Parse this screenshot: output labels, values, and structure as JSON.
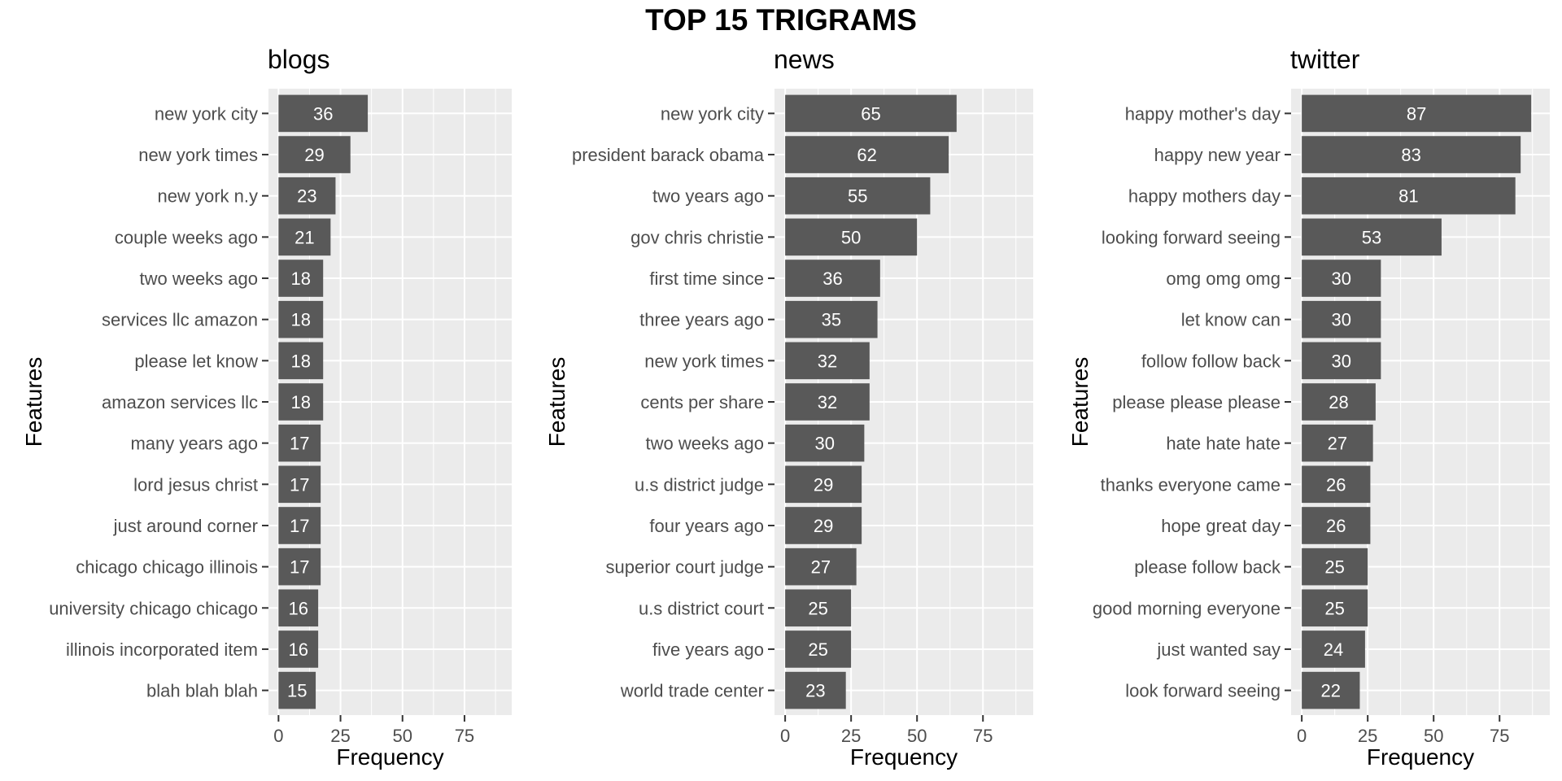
{
  "title": "TOP 15 TRIGRAMS",
  "colors": {
    "bar": "#595959",
    "panel_bg": "#ebebeb",
    "grid": "#ffffff"
  },
  "chart_data": [
    {
      "type": "bar",
      "orientation": "horizontal",
      "title": "blogs",
      "xlabel": "Frequency",
      "ylabel": "Features",
      "xlim": [
        0,
        90
      ],
      "xticks": [
        0,
        25,
        50,
        75
      ],
      "categories": [
        "new york city",
        "new york times",
        "new york n.y",
        "couple weeks ago",
        "two weeks ago",
        "services llc amazon",
        "please let know",
        "amazon services llc",
        "many years ago",
        "lord jesus christ",
        "just around corner",
        "chicago chicago illinois",
        "university chicago chicago",
        "illinois incorporated item",
        "blah blah blah"
      ],
      "values": [
        36,
        29,
        23,
        21,
        18,
        18,
        18,
        18,
        17,
        17,
        17,
        17,
        16,
        16,
        15
      ]
    },
    {
      "type": "bar",
      "orientation": "horizontal",
      "title": "news",
      "xlabel": "Frequency",
      "ylabel": "Features",
      "xlim": [
        0,
        90
      ],
      "xticks": [
        0,
        25,
        50,
        75
      ],
      "categories": [
        "new york city",
        "president barack obama",
        "two years ago",
        "gov chris christie",
        "first time since",
        "three years ago",
        "new york times",
        "cents per share",
        "two weeks ago",
        "u.s district judge",
        "four years ago",
        "superior court judge",
        "u.s district court",
        "five years ago",
        "world trade center"
      ],
      "values": [
        65,
        62,
        55,
        50,
        36,
        35,
        32,
        32,
        30,
        29,
        29,
        27,
        25,
        25,
        23
      ]
    },
    {
      "type": "bar",
      "orientation": "horizontal",
      "title": "twitter",
      "xlabel": "Frequency",
      "ylabel": "Features",
      "xlim": [
        0,
        90
      ],
      "xticks": [
        0,
        25,
        50,
        75
      ],
      "categories": [
        "happy mother's day",
        "happy new year",
        "happy mothers day",
        "looking forward seeing",
        "omg omg omg",
        "let know can",
        "follow follow back",
        "please please please",
        "hate hate hate",
        "thanks everyone came",
        "hope great day",
        "please follow back",
        "good morning everyone",
        "just wanted say",
        "look forward seeing"
      ],
      "values": [
        87,
        83,
        81,
        53,
        30,
        30,
        30,
        28,
        27,
        26,
        26,
        25,
        25,
        24,
        22
      ]
    }
  ]
}
